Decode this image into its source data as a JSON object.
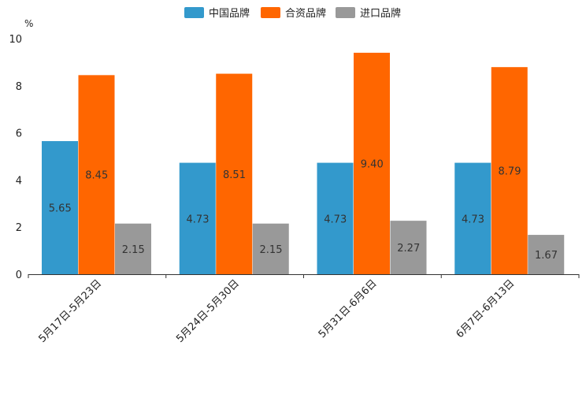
{
  "chart_data": {
    "type": "bar",
    "title": "",
    "unit": "%",
    "xlabel": "",
    "ylabel": "%",
    "ylim": [
      0,
      10
    ],
    "yticks": [
      0,
      2,
      4,
      6,
      8,
      10
    ],
    "grid": false,
    "legend_position": "top-center",
    "categories": [
      "5月17日-5月23日",
      "5月24日-5月30日",
      "5月31日-6月6日",
      "6月7日-6月13日"
    ],
    "series": [
      {
        "name": "中国品牌",
        "color": "#3399cc",
        "values": [
          5.65,
          4.73,
          4.73,
          4.73
        ]
      },
      {
        "name": "合资品牌",
        "color": "#ff6600",
        "values": [
          8.45,
          8.51,
          9.4,
          8.79
        ]
      },
      {
        "name": "进口品牌",
        "color": "#999999",
        "values": [
          2.15,
          2.15,
          2.27,
          1.67
        ]
      }
    ]
  }
}
